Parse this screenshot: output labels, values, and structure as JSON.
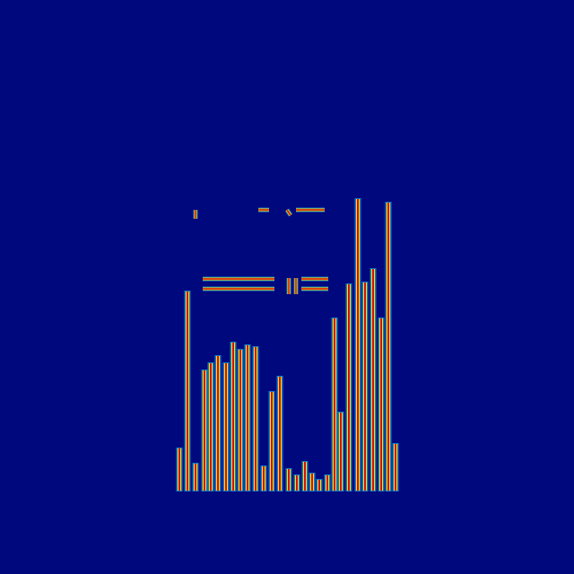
{
  "chart_data": {
    "type": "bar",
    "x": [
      200,
      209,
      218,
      228,
      235,
      243,
      252,
      260,
      268,
      276,
      285,
      294,
      303,
      312,
      322,
      331,
      340,
      348,
      356,
      365,
      373,
      380,
      389,
      399,
      407,
      416,
      425,
      433,
      441
    ],
    "values": [
      47,
      222,
      30,
      134,
      142,
      150,
      142,
      165,
      157,
      162,
      160,
      27,
      110,
      127,
      24,
      17,
      32,
      19,
      12,
      17,
      192,
      87,
      230,
      325,
      232,
      247,
      192,
      321,
      52
    ],
    "baseline": 93,
    "segments": [
      [
        226,
        329,
        306,
        329
      ],
      [
        226,
        318,
        306,
        318
      ],
      [
        218,
        406,
        218,
        396
      ],
      [
        288,
        406,
        300,
        406
      ],
      [
        320,
        406,
        324,
        400
      ],
      [
        330,
        406,
        362,
        406
      ],
      [
        322,
        330,
        322,
        312
      ],
      [
        330,
        330,
        330,
        312
      ],
      [
        336,
        318,
        366,
        318
      ],
      [
        336,
        329,
        366,
        329
      ]
    ],
    "color": "#d01010",
    "xlim": [
      0,
      640
    ],
    "ylim": [
      0,
      640
    ],
    "grid": false,
    "tick_labels": false
  }
}
